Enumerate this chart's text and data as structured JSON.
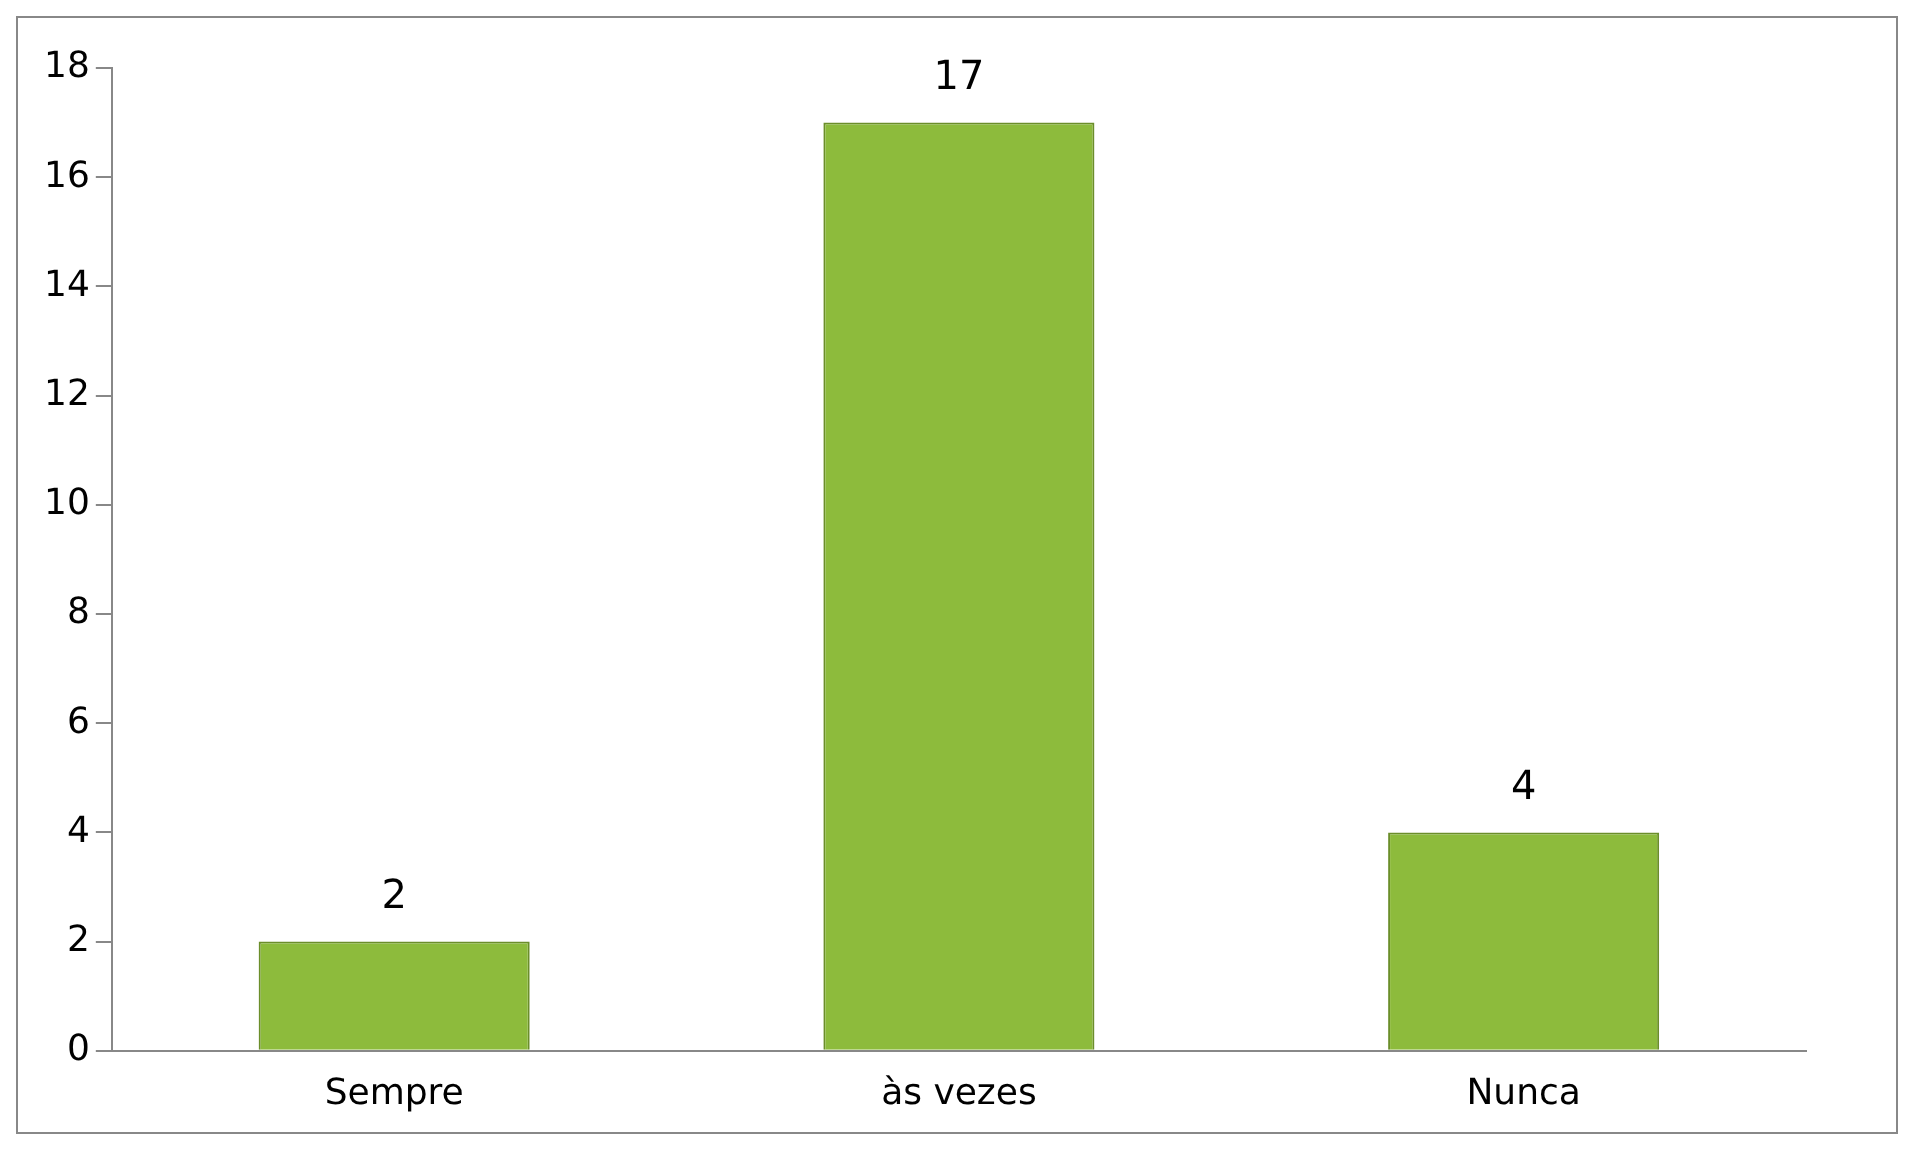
{
  "chart_data": {
    "type": "bar",
    "categories": [
      "Sempre",
      "às vezes",
      "Nunca"
    ],
    "values": [
      2,
      17,
      4
    ],
    "color": "#8dbb3c",
    "ylim": [
      0,
      18
    ],
    "yticks": [
      0,
      2,
      4,
      6,
      8,
      10,
      12,
      14,
      16,
      18
    ],
    "grid": false,
    "legend": false,
    "data_labels": true
  }
}
